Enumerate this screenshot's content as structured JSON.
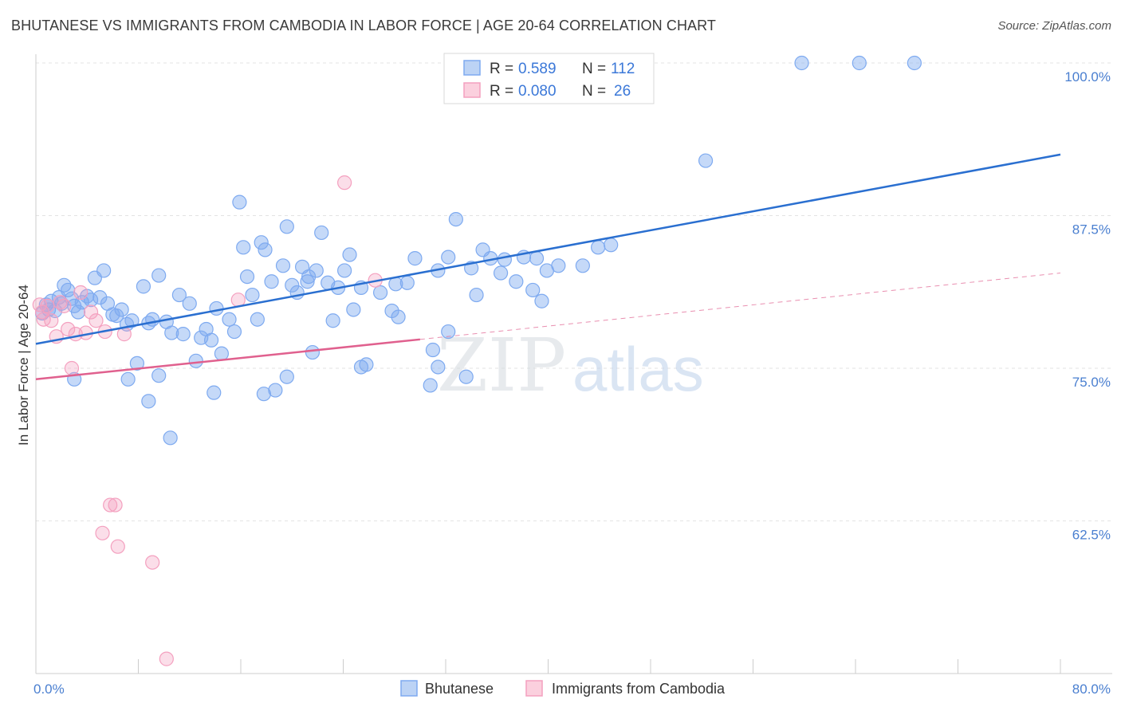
{
  "title": "BHUTANESE VS IMMIGRANTS FROM CAMBODIA IN LABOR FORCE | AGE 20-64 CORRELATION CHART",
  "source": "Source: ZipAtlas.com",
  "watermark": {
    "zip": "ZIP",
    "atlas": "atlas"
  },
  "legend": {
    "rows": [
      {
        "r_label": "R =",
        "r_value": "0.589",
        "n_label": "N =",
        "n_value": "112"
      },
      {
        "r_label": "R =",
        "r_value": "0.080",
        "n_label": "N =",
        "n_value": "26"
      }
    ]
  },
  "chart_data": {
    "type": "scatter",
    "title": "BHUTANESE VS IMMIGRANTS FROM CAMBODIA IN LABOR FORCE | AGE 20-64 CORRELATION CHART",
    "xlabel": "",
    "ylabel": "In Labor Force | Age 20-64",
    "xlim": [
      0,
      80
    ],
    "ylim": [
      50,
      102
    ],
    "x_tick_labels": [
      "0.0%",
      "80.0%"
    ],
    "y_ticks": [
      62.5,
      75.0,
      87.5,
      100.0
    ],
    "y_tick_labels": [
      "62.5%",
      "75.0%",
      "87.5%",
      "100.0%"
    ],
    "grid": true,
    "series": [
      {
        "name": "Bhutanese",
        "color": "#7eaaf0",
        "line_color": "#2a6fd0",
        "trend": {
          "x0": 0,
          "y0": 77.0,
          "x1": 80,
          "y1": 92.5,
          "dashed_from": null
        },
        "points": [
          [
            0.5,
            79.5
          ],
          [
            0.8,
            80.2
          ],
          [
            1.0,
            79.8
          ],
          [
            1.2,
            80.5
          ],
          [
            1.5,
            79.7
          ],
          [
            1.8,
            80.8
          ],
          [
            2.0,
            80.3
          ],
          [
            2.2,
            81.8
          ],
          [
            2.5,
            81.4
          ],
          [
            2.8,
            80.7
          ],
          [
            3.0,
            80.1
          ],
          [
            3.3,
            79.6
          ],
          [
            3.6,
            80.4
          ],
          [
            4.0,
            80.9
          ],
          [
            4.3,
            80.6
          ],
          [
            4.6,
            82.4
          ],
          [
            5.0,
            80.8
          ],
          [
            5.3,
            83.0
          ],
          [
            5.6,
            80.3
          ],
          [
            6.0,
            79.4
          ],
          [
            6.3,
            79.3
          ],
          [
            6.7,
            79.8
          ],
          [
            7.1,
            78.6
          ],
          [
            7.5,
            78.9
          ],
          [
            7.9,
            75.4
          ],
          [
            8.4,
            81.7
          ],
          [
            8.8,
            78.7
          ],
          [
            9.1,
            79.0
          ],
          [
            9.6,
            82.6
          ],
          [
            10.2,
            78.8
          ],
          [
            10.6,
            77.9
          ],
          [
            11.2,
            81.0
          ],
          [
            11.5,
            77.8
          ],
          [
            12.0,
            80.3
          ],
          [
            12.5,
            75.6
          ],
          [
            12.9,
            77.5
          ],
          [
            13.3,
            78.2
          ],
          [
            13.7,
            77.3
          ],
          [
            14.1,
            79.9
          ],
          [
            14.5,
            76.2
          ],
          [
            15.1,
            79.0
          ],
          [
            15.5,
            78.0
          ],
          [
            15.9,
            88.6
          ],
          [
            16.2,
            84.9
          ],
          [
            16.5,
            82.5
          ],
          [
            16.9,
            81.0
          ],
          [
            17.3,
            79.0
          ],
          [
            17.6,
            85.3
          ],
          [
            17.9,
            84.7
          ],
          [
            18.4,
            82.1
          ],
          [
            18.7,
            73.2
          ],
          [
            19.3,
            83.4
          ],
          [
            19.6,
            86.6
          ],
          [
            20.0,
            81.8
          ],
          [
            20.4,
            81.2
          ],
          [
            20.8,
            83.3
          ],
          [
            21.3,
            82.5
          ],
          [
            21.6,
            76.3
          ],
          [
            21.9,
            83.0
          ],
          [
            22.3,
            86.1
          ],
          [
            22.8,
            82.0
          ],
          [
            23.2,
            78.9
          ],
          [
            23.6,
            81.6
          ],
          [
            24.1,
            83.0
          ],
          [
            24.5,
            84.3
          ],
          [
            24.8,
            79.8
          ],
          [
            25.4,
            81.6
          ],
          [
            25.8,
            75.3
          ],
          [
            26.9,
            81.2
          ],
          [
            27.8,
            79.7
          ],
          [
            28.1,
            81.9
          ],
          [
            28.3,
            79.2
          ],
          [
            29.0,
            82.0
          ],
          [
            29.6,
            84.0
          ],
          [
            30.8,
            73.6
          ],
          [
            31.0,
            76.5
          ],
          [
            31.4,
            83.0
          ],
          [
            32.2,
            84.1
          ],
          [
            32.8,
            87.2
          ],
          [
            34.0,
            83.2
          ],
          [
            34.4,
            81.0
          ],
          [
            34.9,
            84.7
          ],
          [
            35.5,
            84.0
          ],
          [
            36.3,
            82.8
          ],
          [
            36.6,
            83.9
          ],
          [
            37.5,
            82.1
          ],
          [
            38.1,
            84.1
          ],
          [
            38.8,
            81.4
          ],
          [
            39.1,
            84.0
          ],
          [
            39.5,
            80.5
          ],
          [
            39.9,
            83.0
          ],
          [
            40.8,
            83.4
          ],
          [
            42.7,
            83.4
          ],
          [
            43.9,
            84.9
          ],
          [
            44.9,
            85.1
          ],
          [
            8.8,
            72.3
          ],
          [
            9.6,
            74.4
          ],
          [
            10.5,
            69.3
          ],
          [
            13.9,
            73.0
          ],
          [
            17.8,
            72.9
          ],
          [
            19.6,
            74.3
          ],
          [
            7.2,
            74.1
          ],
          [
            3.0,
            74.1
          ],
          [
            25.4,
            75.1
          ],
          [
            32.2,
            78.0
          ],
          [
            31.4,
            75.1
          ],
          [
            33.6,
            74.3
          ],
          [
            52.3,
            92.0
          ],
          [
            59.8,
            100.0
          ],
          [
            64.3,
            100.0
          ],
          [
            68.6,
            100.0
          ],
          [
            21.2,
            82.1
          ]
        ]
      },
      {
        "name": "Immigrants from Cambodia",
        "color": "#f4a0bf",
        "line_color": "#e0608e",
        "trend": {
          "x0": 0,
          "y0": 74.1,
          "x1": 80,
          "y1": 82.8,
          "solid_until": 30
        },
        "points": [
          [
            0.3,
            80.2
          ],
          [
            0.6,
            79.0
          ],
          [
            0.9,
            80.1
          ],
          [
            1.2,
            78.9
          ],
          [
            1.6,
            77.6
          ],
          [
            1.9,
            80.4
          ],
          [
            2.2,
            80.1
          ],
          [
            2.5,
            78.2
          ],
          [
            2.8,
            75.0
          ],
          [
            3.1,
            77.8
          ],
          [
            3.5,
            81.2
          ],
          [
            3.9,
            77.9
          ],
          [
            4.3,
            79.6
          ],
          [
            4.7,
            78.9
          ],
          [
            5.4,
            78.0
          ],
          [
            6.9,
            77.8
          ],
          [
            5.8,
            63.8
          ],
          [
            6.2,
            63.8
          ],
          [
            5.2,
            61.5
          ],
          [
            6.4,
            60.4
          ],
          [
            9.1,
            59.1
          ],
          [
            10.2,
            51.2
          ],
          [
            15.8,
            80.6
          ],
          [
            24.1,
            90.2
          ],
          [
            26.5,
            82.2
          ],
          [
            0.5,
            79.6
          ]
        ]
      }
    ]
  },
  "bottom_legend": [
    {
      "label": "Bhutanese"
    },
    {
      "label": "Immigrants from Cambodia"
    }
  ]
}
